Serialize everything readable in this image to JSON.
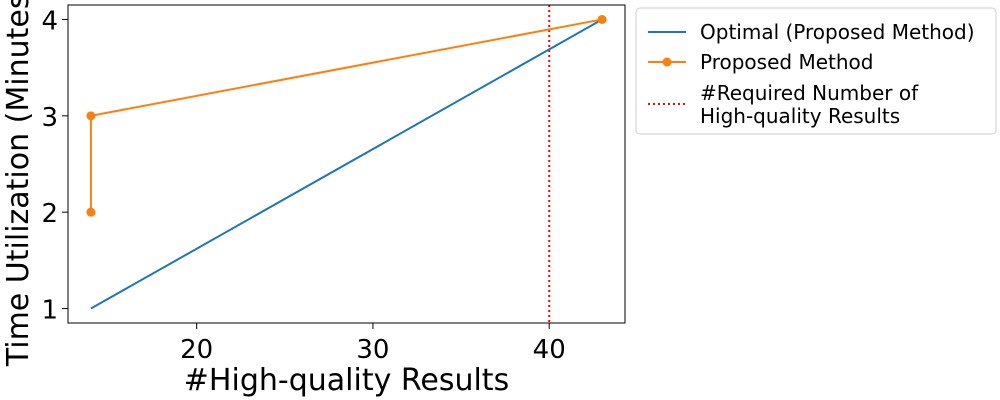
{
  "chart_data": {
    "type": "line",
    "title": "",
    "xlabel": "#High-quality Results",
    "ylabel": "Time Utilization (Minutes)",
    "xlim": [
      12.7,
      44.3
    ],
    "ylim": [
      0.85,
      4.15
    ],
    "xticks": [
      20,
      30,
      40
    ],
    "yticks": [
      1,
      2,
      3,
      4
    ],
    "grid": false,
    "legend_position": "outside-right",
    "series": [
      {
        "name": "Optimal (Proposed Method)",
        "color": "#1f77b4",
        "marker": "none",
        "x": [
          14,
          43
        ],
        "y": [
          1,
          4
        ]
      },
      {
        "name": "Proposed Method",
        "color": "#ff7f0e",
        "marker": "circle",
        "x": [
          14,
          14,
          43
        ],
        "y": [
          2,
          3,
          4
        ]
      }
    ],
    "reference_lines": [
      {
        "name_lines": [
          "#Required Number of",
          "High-quality Results"
        ],
        "orientation": "vertical",
        "x": 40,
        "color": "#ff0000",
        "style": "dotted"
      }
    ]
  }
}
